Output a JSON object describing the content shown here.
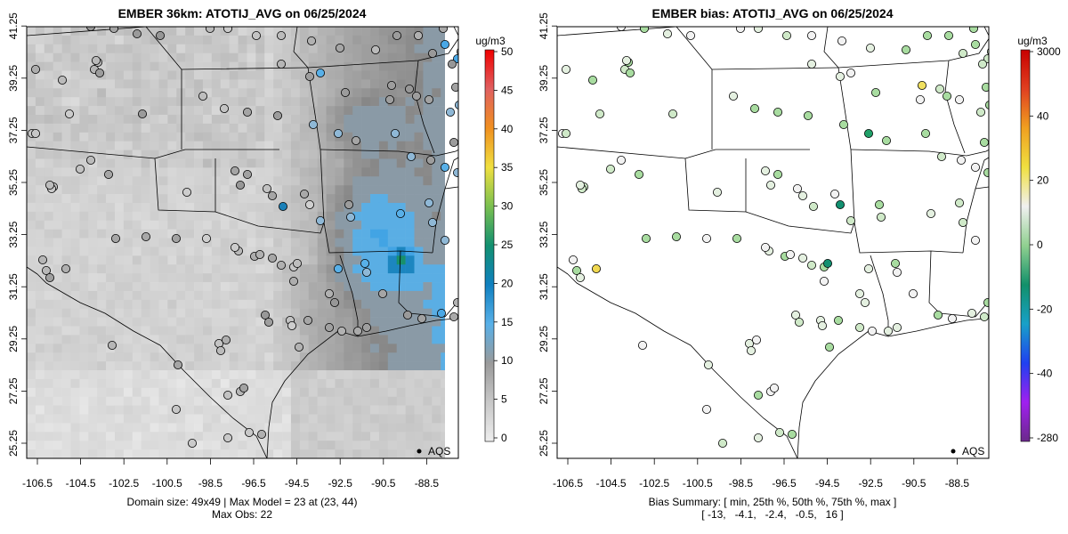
{
  "left_panel": {
    "title": "EMBER 36km: ATOTIJ_AVG on 06/25/2024",
    "units": "ug/m3",
    "legend_label": "AQS",
    "colorbar_ticks": [
      "0",
      "5",
      "10",
      "15",
      "20",
      "25",
      "30",
      "35",
      "40",
      "45",
      "50"
    ],
    "colorbar_colors": [
      "#eeeeee",
      "#c8c8c8",
      "#9a9a9a",
      "#58b0e8",
      "#1080c0",
      "#129070",
      "#7ac050",
      "#f0e040",
      "#f09020",
      "#e06060",
      "#f00000"
    ],
    "x_ticks": [
      "-106.5",
      "-104.5",
      "-102.5",
      "-100.5",
      "-98.5",
      "-96.5",
      "-94.5",
      "-92.5",
      "-90.5",
      "-88.5"
    ],
    "y_ticks": [
      "25.25",
      "27.25",
      "29.25",
      "31.25",
      "33.25",
      "35.25",
      "37.25",
      "39.25",
      "41.25"
    ],
    "footer_line1": "Domain size: 49x49 | Max Model = 23 at (23, 44)",
    "footer_line2": "Max Obs: 22"
  },
  "right_panel": {
    "title": "EMBER bias: ATOTIJ_AVG on 06/25/2024",
    "units": "ug/m3",
    "legend_label": "AQS",
    "colorbar_ticks": [
      "-280",
      "-40",
      "-20",
      "0",
      "20",
      "40",
      "3000"
    ],
    "colorbar_colors": [
      "#6a2a8a",
      "#a020f0",
      "#2040f0",
      "#18a0c8",
      "#12906a",
      "#90d090",
      "#f0f0f0",
      "#f0e040",
      "#f0a020",
      "#e04020",
      "#c80000"
    ],
    "x_ticks": [
      "-106.5",
      "-104.5",
      "-102.5",
      "-100.5",
      "-98.5",
      "-96.5",
      "-94.5",
      "-92.5",
      "-90.5",
      "-88.5"
    ],
    "y_ticks": [
      "25.25",
      "27.25",
      "29.25",
      "31.25",
      "33.25",
      "35.25",
      "37.25",
      "39.25",
      "41.25"
    ],
    "footer_line1": "Bias Summary: [ min, 25th %, 50th %, 75th %, max ]",
    "footer_line2": "[ -13,   -4.1,   -2.4,   -0.5,   16 ]"
  }
}
